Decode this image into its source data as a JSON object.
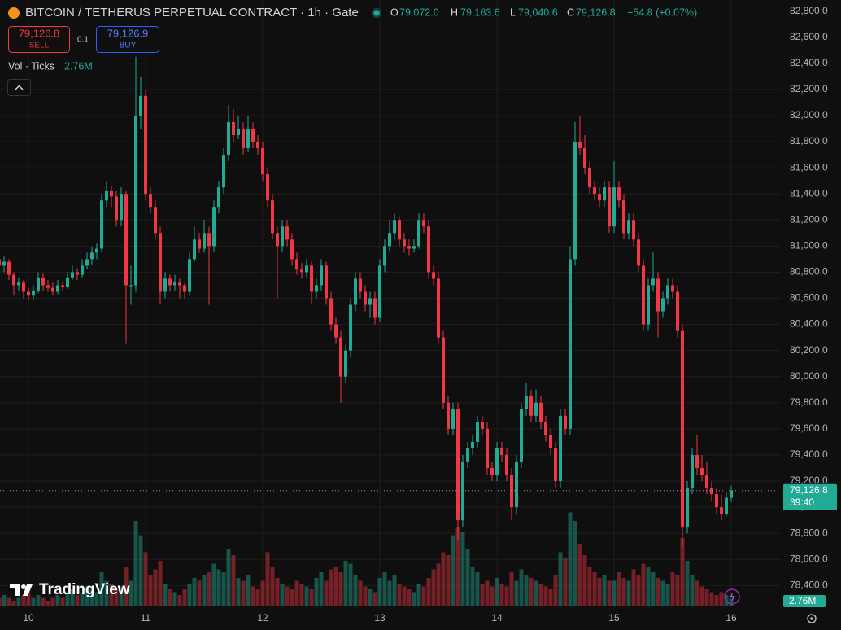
{
  "header": {
    "title": "BITCOIN / TETHERUS PERPETUAL CONTRACT · 1h · Gate",
    "ohlc_legend": [
      {
        "key": "O",
        "value": "79,072.0"
      },
      {
        "key": "H",
        "value": "79,163.6"
      },
      {
        "key": "L",
        "value": "79,040.6"
      },
      {
        "key": "C",
        "value": "79,126.8"
      }
    ],
    "change": "+54.8 (+0.07%)",
    "sell": {
      "price": "79,126.8",
      "label": "SELL"
    },
    "quantity": "0.1",
    "buy": {
      "price": "79,126.9",
      "label": "BUY"
    },
    "volume_legend": {
      "name": "Vol · Ticks",
      "value": "2.76M"
    },
    "price_tag": {
      "price": "79,126.8",
      "countdown": "39:40"
    },
    "volume_tag": "2.76M",
    "logo": "TradingView"
  },
  "chart_data": {
    "type": "candlestick",
    "title": "BITCOIN / TETHERUS PERPETUAL CONTRACT · 1h · Gate",
    "categories": [
      null,
      null,
      null,
      null,
      null,
      null,
      "10",
      null,
      null,
      null,
      null,
      null,
      null,
      null,
      null,
      null,
      null,
      null,
      null,
      null,
      null,
      null,
      null,
      null,
      null,
      null,
      null,
      null,
      null,
      null,
      "11",
      null,
      null,
      null,
      null,
      null,
      null,
      null,
      null,
      null,
      null,
      null,
      null,
      null,
      null,
      null,
      null,
      null,
      null,
      null,
      null,
      null,
      null,
      null,
      "12",
      null,
      null,
      null,
      null,
      null,
      null,
      null,
      null,
      null,
      null,
      null,
      null,
      null,
      null,
      null,
      null,
      null,
      null,
      null,
      null,
      null,
      null,
      null,
      "13",
      null,
      null,
      null,
      null,
      null,
      null,
      null,
      null,
      null,
      null,
      null,
      null,
      null,
      null,
      null,
      null,
      null,
      null,
      null,
      null,
      null,
      null,
      null,
      "14",
      null,
      null,
      null,
      null,
      null,
      null,
      null,
      null,
      null,
      null,
      null,
      null,
      null,
      null,
      null,
      null,
      null,
      null,
      null,
      null,
      null,
      null,
      null,
      "15",
      null,
      null,
      null,
      null,
      null,
      null,
      null,
      null,
      null,
      null,
      null,
      null,
      null,
      null,
      null,
      null,
      null,
      null,
      null,
      null,
      null,
      null,
      null,
      "16"
    ],
    "ohlc": [
      [
        80900,
        80950,
        80820,
        80850
      ],
      [
        80850,
        80920,
        80800,
        80880
      ],
      [
        80880,
        80900,
        80740,
        80780
      ],
      [
        80780,
        80800,
        80620,
        80700
      ],
      [
        80700,
        80760,
        80660,
        80720
      ],
      [
        80720,
        80740,
        80600,
        80650
      ],
      [
        80650,
        80680,
        80580,
        80620
      ],
      [
        80620,
        80700,
        80590,
        80660
      ],
      [
        80660,
        80800,
        80640,
        80760
      ],
      [
        80760,
        80790,
        80660,
        80700
      ],
      [
        80700,
        80740,
        80650,
        80680
      ],
      [
        80680,
        80720,
        80620,
        80650
      ],
      [
        80650,
        80740,
        80630,
        80700
      ],
      [
        80700,
        80730,
        80660,
        80690
      ],
      [
        80690,
        80800,
        80670,
        80760
      ],
      [
        80760,
        80850,
        80740,
        80800
      ],
      [
        80800,
        80830,
        80740,
        80780
      ],
      [
        80780,
        80900,
        80760,
        80850
      ],
      [
        80850,
        80950,
        80820,
        80900
      ],
      [
        80900,
        80990,
        80860,
        80950
      ],
      [
        80950,
        81020,
        80900,
        80980
      ],
      [
        80980,
        81400,
        80950,
        81350
      ],
      [
        81350,
        81500,
        81300,
        81420
      ],
      [
        81420,
        81460,
        81300,
        81380
      ],
      [
        81380,
        81420,
        81150,
        81200
      ],
      [
        81200,
        81450,
        81150,
        81400
      ],
      [
        81400,
        81420,
        80250,
        80700
      ],
      [
        80700,
        80850,
        80550,
        80700
      ],
      [
        80700,
        82450,
        80650,
        82000
      ],
      [
        82000,
        82300,
        81900,
        82150
      ],
      [
        82150,
        82200,
        81350,
        81400
      ],
      [
        81400,
        81450,
        81250,
        81300
      ],
      [
        81300,
        81350,
        81050,
        81100
      ],
      [
        81100,
        81150,
        80550,
        80650
      ],
      [
        80650,
        80800,
        80600,
        80750
      ],
      [
        80750,
        80780,
        80650,
        80700
      ],
      [
        80700,
        80780,
        80660,
        80720
      ],
      [
        80720,
        80750,
        80600,
        80700
      ],
      [
        80700,
        80720,
        80600,
        80650
      ],
      [
        80650,
        80950,
        80620,
        80900
      ],
      [
        80900,
        81150,
        80880,
        81050
      ],
      [
        81050,
        81100,
        80950,
        80980
      ],
      [
        80980,
        81200,
        80950,
        81100
      ],
      [
        81100,
        81150,
        80550,
        81000
      ],
      [
        81000,
        81350,
        80960,
        81300
      ],
      [
        81300,
        81500,
        81250,
        81450
      ],
      [
        81450,
        81750,
        81400,
        81700
      ],
      [
        81700,
        82080,
        81650,
        81950
      ],
      [
        81950,
        82050,
        81800,
        81850
      ],
      [
        81850,
        82000,
        81820,
        81900
      ],
      [
        81900,
        81950,
        81700,
        81750
      ],
      [
        81750,
        82000,
        81720,
        81900
      ],
      [
        81900,
        81950,
        81750,
        81800
      ],
      [
        81800,
        81850,
        81700,
        81750
      ],
      [
        81750,
        81800,
        81500,
        81550
      ],
      [
        81550,
        81600,
        81300,
        81350
      ],
      [
        81350,
        81400,
        81050,
        81100
      ],
      [
        81100,
        81150,
        80600,
        81000
      ],
      [
        81000,
        81200,
        80950,
        81150
      ],
      [
        81150,
        81200,
        81000,
        81050
      ],
      [
        81050,
        81100,
        80850,
        80900
      ],
      [
        80900,
        80950,
        80780,
        80820
      ],
      [
        80820,
        80870,
        80750,
        80800
      ],
      [
        80800,
        80900,
        80760,
        80850
      ],
      [
        80850,
        80880,
        80550,
        80650
      ],
      [
        80650,
        80750,
        80600,
        80700
      ],
      [
        80700,
        80900,
        80660,
        80850
      ],
      [
        80850,
        80880,
        80550,
        80600
      ],
      [
        80600,
        80650,
        80350,
        80400
      ],
      [
        80400,
        80450,
        80250,
        80300
      ],
      [
        80300,
        80350,
        79800,
        80000
      ],
      [
        80000,
        80250,
        79950,
        80200
      ],
      [
        80200,
        80600,
        80150,
        80550
      ],
      [
        80550,
        80800,
        80500,
        80750
      ],
      [
        80750,
        80800,
        80600,
        80650
      ],
      [
        80650,
        80700,
        80500,
        80550
      ],
      [
        80550,
        80650,
        80450,
        80600
      ],
      [
        80600,
        80650,
        80400,
        80450
      ],
      [
        80450,
        80900,
        80420,
        80850
      ],
      [
        80850,
        81050,
        80800,
        81000
      ],
      [
        81000,
        81200,
        80950,
        81100
      ],
      [
        81100,
        81250,
        81050,
        81200
      ],
      [
        81200,
        81220,
        81000,
        81050
      ],
      [
        81050,
        81100,
        80950,
        81000
      ],
      [
        81000,
        81050,
        80930,
        80980
      ],
      [
        80980,
        81050,
        80950,
        81000
      ],
      [
        81000,
        81250,
        80980,
        81200
      ],
      [
        81200,
        81250,
        81100,
        81150
      ],
      [
        81150,
        81200,
        80750,
        80800
      ],
      [
        80800,
        80850,
        80700,
        80750
      ],
      [
        80750,
        80800,
        80250,
        80300
      ],
      [
        80300,
        80350,
        79750,
        79800
      ],
      [
        79800,
        79850,
        79550,
        79600
      ],
      [
        79600,
        79800,
        79550,
        79750
      ],
      [
        79750,
        79800,
        78750,
        78900
      ],
      [
        78900,
        79400,
        78850,
        79350
      ],
      [
        79350,
        79500,
        79300,
        79450
      ],
      [
        79450,
        79550,
        79400,
        79500
      ],
      [
        79500,
        79700,
        79450,
        79650
      ],
      [
        79650,
        79700,
        79550,
        79600
      ],
      [
        79600,
        79650,
        79250,
        79300
      ],
      [
        79300,
        79350,
        79200,
        79250
      ],
      [
        79250,
        79500,
        79200,
        79450
      ],
      [
        79450,
        79500,
        79350,
        79400
      ],
      [
        79400,
        79450,
        79200,
        79250
      ],
      [
        79250,
        79300,
        78900,
        79000
      ],
      [
        79000,
        79400,
        78950,
        79350
      ],
      [
        79350,
        79800,
        79300,
        79750
      ],
      [
        79750,
        79950,
        79700,
        79850
      ],
      [
        79850,
        79900,
        79650,
        79700
      ],
      [
        79700,
        79900,
        79650,
        79800
      ],
      [
        79800,
        79850,
        79600,
        79650
      ],
      [
        79650,
        79700,
        79500,
        79550
      ],
      [
        79550,
        79600,
        79400,
        79450
      ],
      [
        79450,
        79500,
        79150,
        79200
      ],
      [
        79200,
        79750,
        79150,
        79700
      ],
      [
        79700,
        79750,
        79550,
        79600
      ],
      [
        79600,
        81000,
        79550,
        80900
      ],
      [
        80900,
        81950,
        80850,
        81800
      ],
      [
        81800,
        82000,
        81700,
        81750
      ],
      [
        81750,
        81850,
        81550,
        81600
      ],
      [
        81600,
        81650,
        81400,
        81450
      ],
      [
        81450,
        81500,
        81350,
        81400
      ],
      [
        81400,
        81450,
        81300,
        81350
      ],
      [
        81350,
        81500,
        81300,
        81450
      ],
      [
        81450,
        81500,
        81100,
        81150
      ],
      [
        81150,
        81650,
        81100,
        81450
      ],
      [
        81450,
        81500,
        81300,
        81350
      ],
      [
        81350,
        81400,
        81050,
        81100
      ],
      [
        81100,
        81250,
        81050,
        81200
      ],
      [
        81200,
        81250,
        81000,
        81050
      ],
      [
        81050,
        81100,
        80800,
        80850
      ],
      [
        80850,
        80900,
        80350,
        80400
      ],
      [
        80400,
        80750,
        80350,
        80700
      ],
      [
        80700,
        80950,
        80650,
        80750
      ],
      [
        80750,
        80800,
        80300,
        80500
      ],
      [
        80500,
        80650,
        80450,
        80600
      ],
      [
        80600,
        80750,
        80550,
        80700
      ],
      [
        80700,
        80750,
        80600,
        80650
      ],
      [
        80650,
        80700,
        80300,
        80350
      ],
      [
        80350,
        80400,
        78700,
        78850
      ],
      [
        78850,
        79200,
        78800,
        79150
      ],
      [
        79150,
        79450,
        79100,
        79400
      ],
      [
        79400,
        79550,
        79250,
        79300
      ],
      [
        79300,
        79400,
        79200,
        79250
      ],
      [
        79250,
        79350,
        79100,
        79150
      ],
      [
        79150,
        79200,
        79050,
        79100
      ],
      [
        79100,
        79150,
        78950,
        79000
      ],
      [
        79000,
        79100,
        78900,
        78950
      ],
      [
        78950,
        79120,
        78930,
        79072
      ],
      [
        79072.0,
        79163.6,
        79040.6,
        79126.8
      ]
    ],
    "volume": [
      3,
      4,
      3,
      2,
      3,
      4,
      5,
      3,
      4,
      3,
      2,
      3,
      4,
      3,
      5,
      6,
      4,
      5,
      7,
      6,
      5,
      12,
      9,
      8,
      6,
      7,
      14,
      9,
      30,
      25,
      19,
      11,
      13,
      16,
      8,
      6,
      5,
      4,
      6,
      8,
      10,
      9,
      11,
      12,
      15,
      13,
      12,
      20,
      18,
      10,
      9,
      11,
      7,
      6,
      9,
      19,
      14,
      10,
      8,
      7,
      6,
      9,
      8,
      7,
      6,
      10,
      12,
      9,
      13,
      14,
      12,
      16,
      15,
      11,
      9,
      7,
      6,
      5,
      10,
      12,
      9,
      11,
      8,
      7,
      6,
      5,
      8,
      7,
      10,
      13,
      15,
      19,
      18,
      25,
      28,
      26,
      20,
      14,
      12,
      8,
      9,
      7,
      10,
      8,
      7,
      12,
      9,
      13,
      11,
      10,
      9,
      8,
      7,
      6,
      11,
      19,
      17,
      33,
      30,
      22,
      18,
      14,
      12,
      10,
      11,
      9,
      9,
      12,
      10,
      9,
      13,
      11,
      15,
      14,
      12,
      10,
      9,
      8,
      12,
      11,
      24,
      16,
      11,
      9,
      7,
      6,
      5,
      4,
      5,
      4,
      2.76
    ],
    "colors": {
      "up": "#22ab94",
      "down": "#f23645"
    },
    "ylim": [
      78240,
      82885
    ],
    "yticks": [
      {
        "value": 78400,
        "label": "78,400.0"
      },
      {
        "value": 78600,
        "label": "78,600.0"
      },
      {
        "value": 78800,
        "label": "78,800.0"
      },
      {
        "value": 79000,
        "label": "79,000.0"
      },
      {
        "value": 79200,
        "label": "79,200.0"
      },
      {
        "value": 79400,
        "label": "79,400.0"
      },
      {
        "value": 79600,
        "label": "79,600.0"
      },
      {
        "value": 79800,
        "label": "79,800.0"
      },
      {
        "value": 80000,
        "label": "80,000.0"
      },
      {
        "value": 80200,
        "label": "80,200.0"
      },
      {
        "value": 80400,
        "label": "80,400.0"
      },
      {
        "value": 80600,
        "label": "80,600.0"
      },
      {
        "value": 80800,
        "label": "80,800.0"
      },
      {
        "value": 81000,
        "label": "81,000.0"
      },
      {
        "value": 81200,
        "label": "81,200.0"
      },
      {
        "value": 81400,
        "label": "81,400.0"
      },
      {
        "value": 81600,
        "label": "81,600.0"
      },
      {
        "value": 81800,
        "label": "81,800.0"
      },
      {
        "value": 82000,
        "label": "82,000.0"
      },
      {
        "value": 82200,
        "label": "82,200.0"
      },
      {
        "value": 82400,
        "label": "82,400.0"
      },
      {
        "value": 82600,
        "label": "82,600.0"
      },
      {
        "value": 82800,
        "label": "82,800.0"
      }
    ],
    "grid": true
  }
}
